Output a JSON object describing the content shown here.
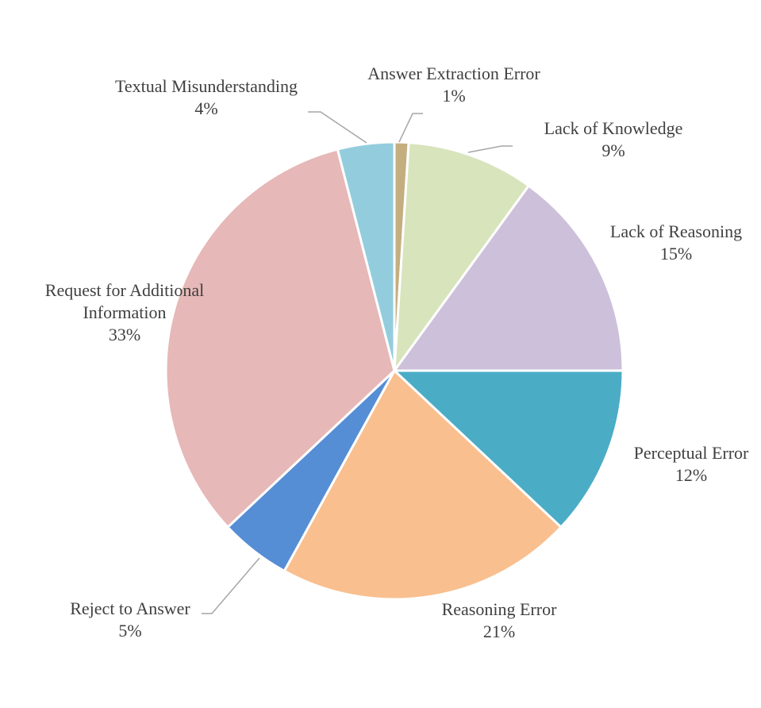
{
  "chart_data": {
    "type": "pie",
    "title": "",
    "start_angle": "top",
    "direction": "clockwise",
    "slices": [
      {
        "label": "Answer Extraction Error",
        "value": 1,
        "pct_label": "1%",
        "color": "#C4AE80"
      },
      {
        "label": "Lack of Knowledge",
        "value": 9,
        "pct_label": "9%",
        "color": "#D8E4BC"
      },
      {
        "label": "Lack of Reasoning",
        "value": 15,
        "pct_label": "15%",
        "color": "#CCC0DA"
      },
      {
        "label": "Perceptual Error",
        "value": 12,
        "pct_label": "12%",
        "color": "#4BACC6"
      },
      {
        "label": "Reasoning Error",
        "value": 21,
        "pct_label": "21%",
        "color": "#F9BF8F"
      },
      {
        "label": "Reject to Answer",
        "value": 5,
        "pct_label": "5%",
        "color": "#558ED5"
      },
      {
        "label": "Request for Additional Information",
        "label_lines": [
          "Request for Additional",
          "Information"
        ],
        "value": 33,
        "pct_label": "33%",
        "color": "#E6B8B7"
      },
      {
        "label": "Textual Misunderstanding",
        "value": 4,
        "pct_label": "4%",
        "color": "#93CDDD"
      }
    ]
  }
}
